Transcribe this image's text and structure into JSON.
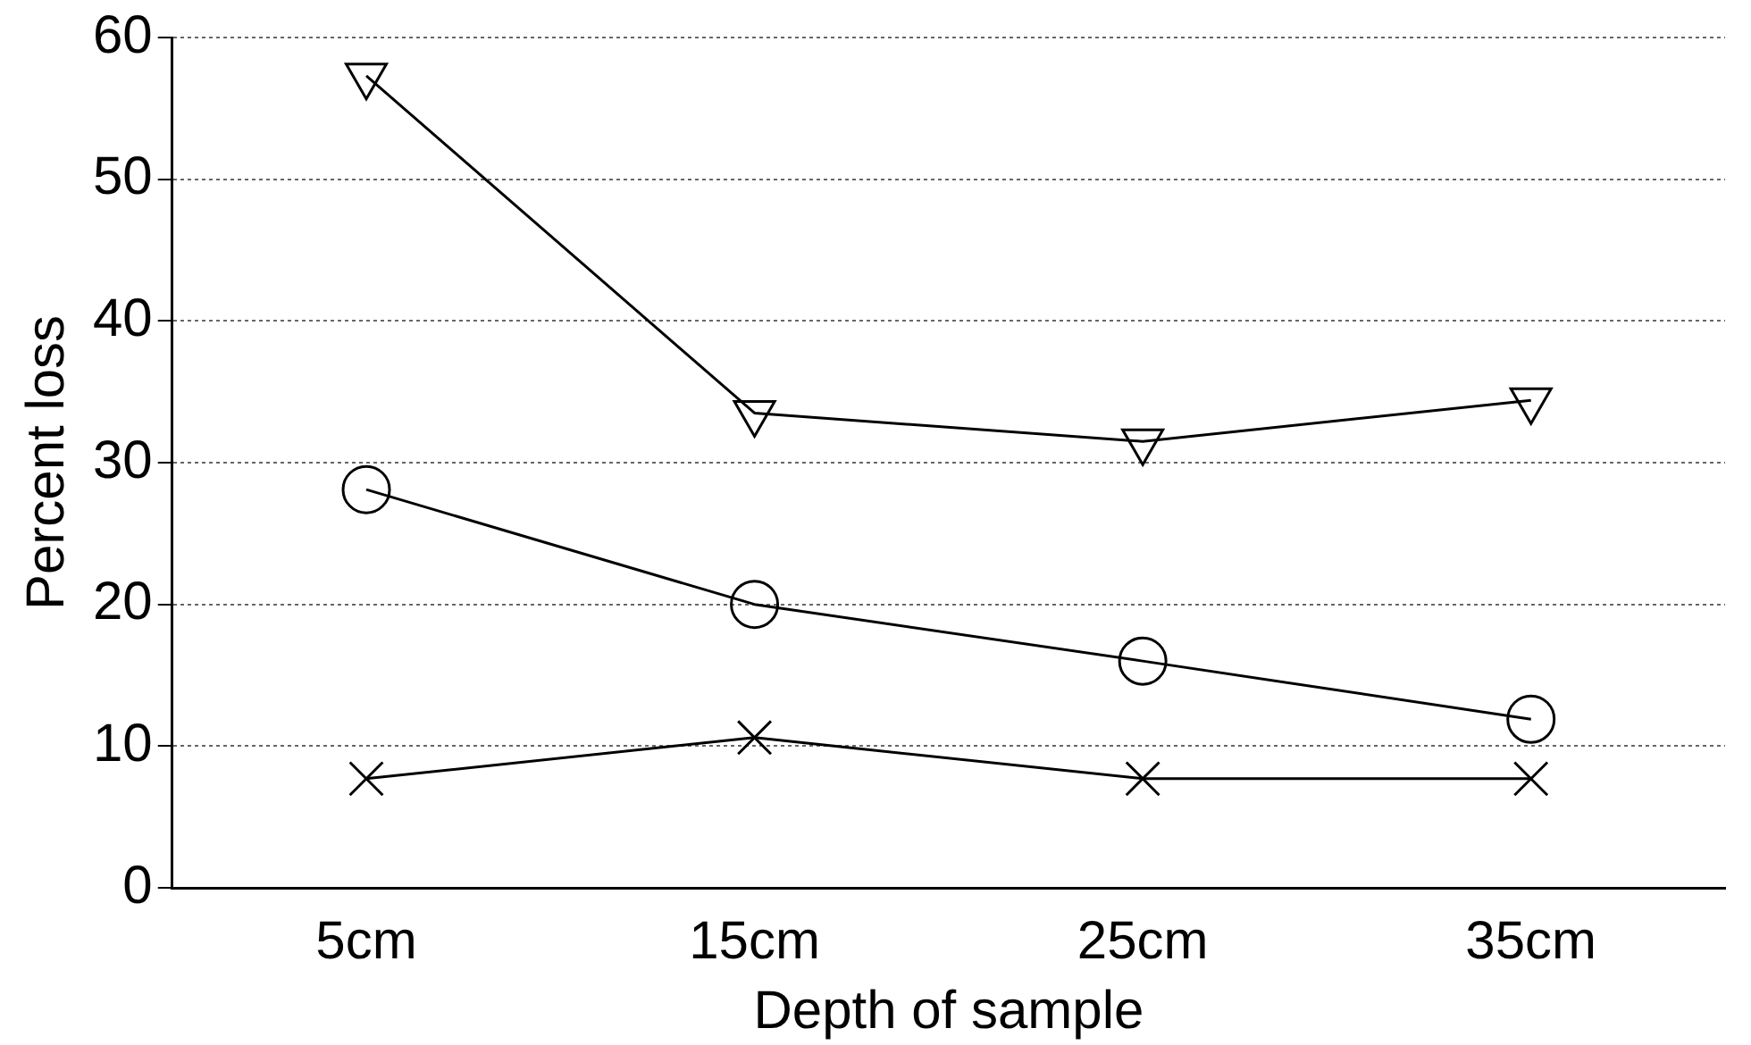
{
  "chart_data": {
    "type": "line",
    "xlabel": "Depth of sample",
    "ylabel": "Percent loss",
    "categories": [
      "5cm",
      "15cm",
      "25cm",
      "35cm"
    ],
    "series": [
      {
        "color": "#000000",
        "marker": "triangle",
        "values": [
          57.3,
          33.5,
          31.5,
          34.4
        ]
      },
      {
        "color": "#000000",
        "marker": "circle",
        "values": [
          28.1,
          20,
          16,
          11.9
        ]
      },
      {
        "color": "#000000",
        "marker": "cross",
        "values": [
          7.7,
          10.6,
          7.7,
          7.7
        ]
      }
    ],
    "ylim": [
      0,
      60
    ],
    "yticks": [
      0,
      10,
      20,
      30,
      40,
      50,
      60
    ],
    "grid": "y",
    "legend": false,
    "line_style": "solid"
  }
}
